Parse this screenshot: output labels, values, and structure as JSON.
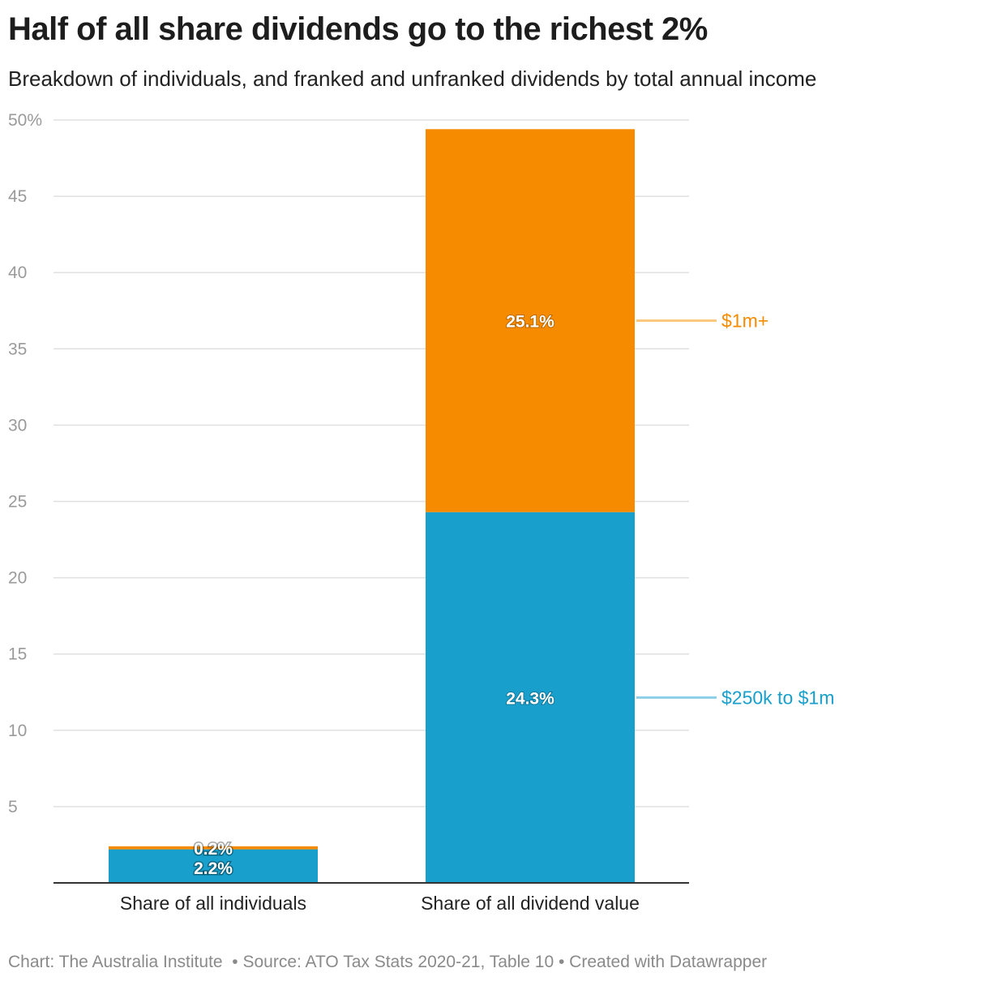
{
  "title": "Half of all share dividends go to the richest 2%",
  "subtitle": "Breakdown of individuals, and franked and unfranked dividends by total annual income",
  "footer": {
    "credit": "Chart: The Australia Institute",
    "separator1": "  •",
    "source": " Source: ATO Tax Stats 2020-21, Table 10",
    "separator2": " •",
    "created": " Created with Datawrapper"
  },
  "chart_data": {
    "type": "bar",
    "stacked": true,
    "categories": [
      "Share of all individuals",
      "Share of all dividend value"
    ],
    "series": [
      {
        "name": "$250k to $1m",
        "values": [
          2.2,
          24.3
        ],
        "labels": [
          "2.2%",
          "24.3%"
        ],
        "color": "#189fcc"
      },
      {
        "name": "$1m+",
        "values": [
          0.2,
          25.1
        ],
        "labels": [
          "0.2%",
          "25.1%"
        ],
        "color": "#f78b00"
      }
    ],
    "ylim": [
      0,
      50
    ],
    "yticks": [
      5,
      10,
      15,
      20,
      25,
      30,
      35,
      40,
      45,
      50
    ],
    "ytick_labels": [
      "5",
      "10",
      "15",
      "20",
      "25",
      "30",
      "35",
      "40",
      "45",
      "50%"
    ],
    "grid": true,
    "legend_placement": "right, inline labels",
    "label_line_colors": {
      "$250k to $1m": "#8ccfe6",
      "$1m+": "#fbc87f"
    }
  }
}
